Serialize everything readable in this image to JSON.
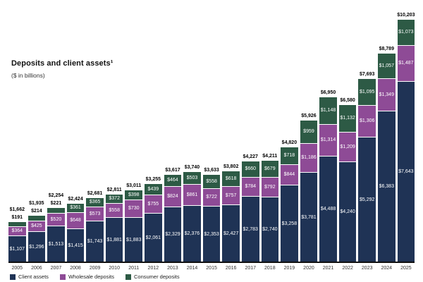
{
  "title": "Deposits and client assets¹",
  "subtitle": "($ in billions)",
  "legend": [
    {
      "label": "Client assets",
      "color": "#1f3355"
    },
    {
      "label": "Wholesale deposits",
      "color": "#8e4b96"
    },
    {
      "label": "Consumer deposits",
      "color": "#2d5a45"
    }
  ],
  "chart_data": {
    "type": "bar",
    "stacked": true,
    "title": "Deposits and client assets",
    "unit": "$ in billions",
    "categories": [
      2005,
      2006,
      2007,
      2008,
      2009,
      2010,
      2011,
      2012,
      2013,
      2014,
      2015,
      2016,
      2017,
      2018,
      2019,
      2020,
      2021,
      2022,
      2023,
      2024,
      2025
    ],
    "series": [
      {
        "name": "Client assets",
        "color": "#1f3355",
        "values": [
          1107,
          1296,
          1513,
          1415,
          1743,
          1881,
          1883,
          2061,
          2329,
          2376,
          2353,
          2427,
          2783,
          2740,
          3258,
          3781,
          4488,
          4240,
          5292,
          6383,
          7643
        ]
      },
      {
        "name": "Wholesale deposits",
        "color": "#8e4b96",
        "values": [
          364,
          425,
          520,
          648,
          573,
          558,
          730,
          755,
          824,
          861,
          722,
          757,
          784,
          792,
          844,
          1186,
          1314,
          1209,
          1306,
          1349,
          1487
        ]
      },
      {
        "name": "Consumer deposits",
        "color": "#2d5a45",
        "values": [
          191,
          214,
          221,
          361,
          365,
          372,
          398,
          439,
          464,
          503,
          558,
          618,
          660,
          679,
          718,
          959,
          1148,
          1132,
          1095,
          1057,
          1073
        ]
      }
    ],
    "totals": [
      1662,
      1935,
      2254,
      2424,
      2681,
      2811,
      3011,
      3255,
      3617,
      3740,
      3633,
      3802,
      4227,
      4211,
      4820,
      5926,
      6950,
      6580,
      7693,
      8789,
      10203
    ],
    "ylim": [
      0,
      10203
    ],
    "grid": false,
    "legend_position": "bottom-left",
    "value_label_format": "$#,###"
  }
}
